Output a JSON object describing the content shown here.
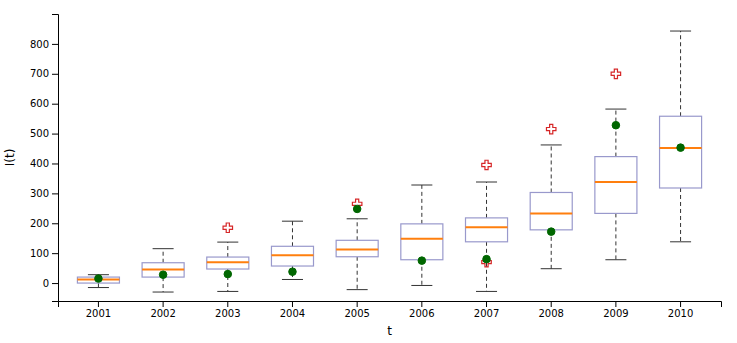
{
  "chart_data": {
    "type": "box",
    "xlabel": "t",
    "ylabel": "I(t)",
    "categories": [
      "2001",
      "2002",
      "2003",
      "2004",
      "2005",
      "2006",
      "2007",
      "2008",
      "2009",
      "2010"
    ],
    "series": [
      {
        "type": "box",
        "color": "#9999cc",
        "values": [
          {
            "low": -15,
            "q1": 0,
            "median": 12,
            "q3": 20,
            "high": 28,
            "fliers": []
          },
          {
            "low": -30,
            "q1": 20,
            "median": 45,
            "q3": 68,
            "high": 115,
            "fliers": []
          },
          {
            "low": -28,
            "q1": 47,
            "median": 70,
            "q3": 87,
            "high": 137,
            "fliers": [
              185
            ]
          },
          {
            "low": 12,
            "q1": 57,
            "median": 93,
            "q3": 123,
            "high": 207,
            "fliers": []
          },
          {
            "low": -22,
            "q1": 88,
            "median": 112,
            "q3": 143,
            "high": 215,
            "fliers": [
              265
            ]
          },
          {
            "low": -8,
            "q1": 78,
            "median": 148,
            "q3": 198,
            "high": 328,
            "fliers": []
          },
          {
            "low": -28,
            "q1": 138,
            "median": 187,
            "q3": 218,
            "high": 338,
            "fliers": [
              395,
              70
            ]
          },
          {
            "low": 48,
            "q1": 178,
            "median": 233,
            "q3": 303,
            "high": 462,
            "fliers": [
              515
            ]
          },
          {
            "low": 78,
            "q1": 233,
            "median": 338,
            "q3": 423,
            "high": 582,
            "fliers": [
              700
            ]
          },
          {
            "low": 138,
            "q1": 318,
            "median": 452,
            "q3": 558,
            "high": 843,
            "fliers": []
          }
        ]
      },
      {
        "type": "scatter",
        "marker": "circle",
        "color": "#006600",
        "values": [
          15,
          28,
          30,
          38,
          248,
          75,
          80,
          172,
          528,
          453
        ]
      }
    ],
    "ylim": [
      -60,
      900
    ],
    "yticks": [
      0,
      100,
      200,
      300,
      400,
      500,
      600,
      700,
      800
    ],
    "grid": false
  }
}
